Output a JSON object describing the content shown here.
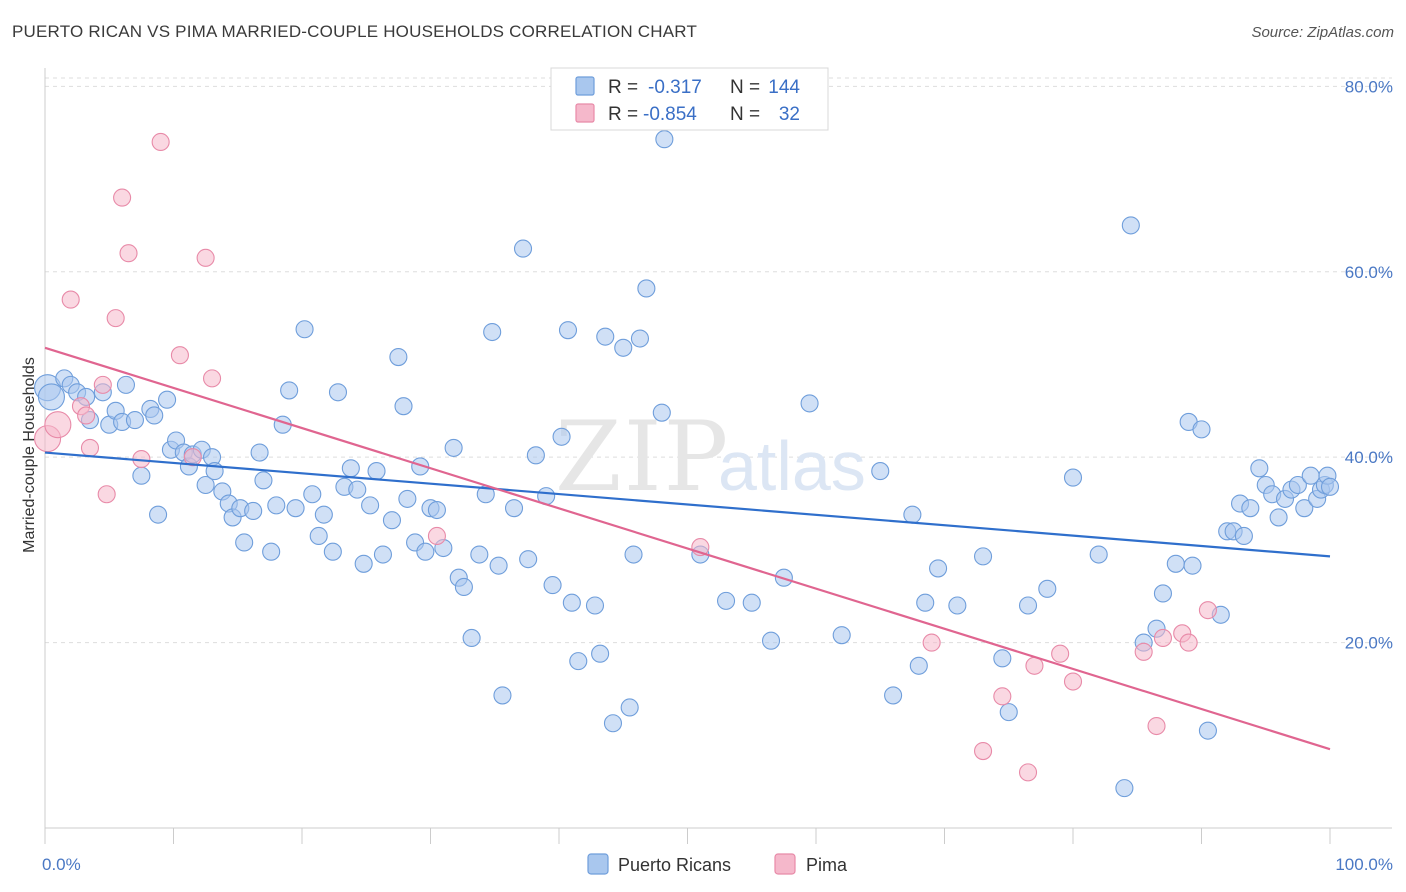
{
  "title": "PUERTO RICAN VS PIMA MARRIED-COUPLE HOUSEHOLDS CORRELATION CHART",
  "source": "Source: ZipAtlas.com",
  "watermark": {
    "zip": "ZIP",
    "atlas": "atlas"
  },
  "colors": {
    "blue_fill": "#a9c7ee",
    "blue_stroke": "#6f9edb",
    "blue_line": "#2f6fcc",
    "pink_fill": "#f5b8cb",
    "pink_stroke": "#e88aa8",
    "pink_line": "#e06590",
    "tick_text": "#4a78c4",
    "grid": "#dddddd"
  },
  "legend": {
    "rows": [
      {
        "r_label": "R =",
        "r_value": "-0.317",
        "n_label": "N =",
        "n_value": "144"
      },
      {
        "r_label": "R =",
        "r_value": "-0.854",
        "n_label": "N =",
        "n_value": "32"
      }
    ]
  },
  "chart_data": {
    "type": "scatter",
    "title": "PUERTO RICAN VS PIMA MARRIED-COUPLE HOUSEHOLDS CORRELATION CHART",
    "xlabel": "",
    "ylabel": "Married-couple Households",
    "xlim": [
      0,
      100
    ],
    "ylim": [
      0,
      85
    ],
    "x_tick_labels": [
      "0.0%",
      "100.0%"
    ],
    "y_ticks": [
      20,
      40,
      60,
      80
    ],
    "y_tick_labels": [
      "20.0%",
      "40.0%",
      "60.0%",
      "80.0%"
    ],
    "grid": true,
    "legend_position": "top-center",
    "series": [
      {
        "name": "Puerto Ricans",
        "trend": {
          "x": [
            0,
            100
          ],
          "y": [
            40.5,
            29.3
          ]
        },
        "points": [
          [
            0.2,
            47.5
          ],
          [
            0.5,
            46.5
          ],
          [
            1.5,
            48.5
          ],
          [
            2.0,
            47.8
          ],
          [
            2.5,
            47.0
          ],
          [
            3.2,
            46.5
          ],
          [
            3.5,
            44.0
          ],
          [
            4.5,
            47.0
          ],
          [
            5.0,
            43.5
          ],
          [
            5.5,
            45.0
          ],
          [
            6.0,
            43.8
          ],
          [
            6.3,
            47.8
          ],
          [
            7.0,
            44.0
          ],
          [
            7.5,
            38.0
          ],
          [
            8.2,
            45.2
          ],
          [
            8.5,
            44.5
          ],
          [
            8.8,
            33.8
          ],
          [
            9.5,
            46.2
          ],
          [
            9.8,
            40.8
          ],
          [
            10.2,
            41.8
          ],
          [
            10.8,
            40.5
          ],
          [
            11.2,
            39.0
          ],
          [
            11.5,
            40.3
          ],
          [
            12.2,
            40.8
          ],
          [
            12.5,
            37.0
          ],
          [
            13.0,
            40.0
          ],
          [
            13.2,
            38.5
          ],
          [
            13.8,
            36.3
          ],
          [
            14.3,
            35.0
          ],
          [
            14.6,
            33.5
          ],
          [
            15.2,
            34.5
          ],
          [
            15.5,
            30.8
          ],
          [
            16.2,
            34.2
          ],
          [
            16.7,
            40.5
          ],
          [
            17.0,
            37.5
          ],
          [
            17.6,
            29.8
          ],
          [
            18.0,
            34.8
          ],
          [
            18.5,
            43.5
          ],
          [
            19.0,
            47.2
          ],
          [
            19.5,
            34.5
          ],
          [
            20.2,
            53.8
          ],
          [
            20.8,
            36.0
          ],
          [
            21.3,
            31.5
          ],
          [
            21.7,
            33.8
          ],
          [
            22.4,
            29.8
          ],
          [
            22.8,
            47.0
          ],
          [
            23.3,
            36.8
          ],
          [
            23.8,
            38.8
          ],
          [
            24.3,
            36.5
          ],
          [
            24.8,
            28.5
          ],
          [
            25.3,
            34.8
          ],
          [
            25.8,
            38.5
          ],
          [
            26.3,
            29.5
          ],
          [
            27.0,
            33.2
          ],
          [
            27.5,
            50.8
          ],
          [
            27.9,
            45.5
          ],
          [
            28.2,
            35.5
          ],
          [
            28.8,
            30.8
          ],
          [
            29.2,
            39.0
          ],
          [
            29.6,
            29.8
          ],
          [
            30.0,
            34.5
          ],
          [
            30.5,
            34.3
          ],
          [
            31.0,
            30.2
          ],
          [
            31.8,
            41.0
          ],
          [
            32.2,
            27.0
          ],
          [
            32.6,
            26.0
          ],
          [
            33.2,
            20.5
          ],
          [
            33.8,
            29.5
          ],
          [
            34.3,
            36.0
          ],
          [
            34.8,
            53.5
          ],
          [
            35.3,
            28.3
          ],
          [
            35.6,
            14.3
          ],
          [
            36.5,
            34.5
          ],
          [
            37.2,
            62.5
          ],
          [
            37.6,
            29.0
          ],
          [
            38.2,
            40.2
          ],
          [
            39.0,
            35.8
          ],
          [
            39.5,
            26.2
          ],
          [
            40.2,
            42.2
          ],
          [
            40.7,
            53.7
          ],
          [
            41.0,
            24.3
          ],
          [
            41.5,
            18.0
          ],
          [
            42.8,
            24.0
          ],
          [
            43.2,
            18.8
          ],
          [
            43.6,
            53.0
          ],
          [
            44.2,
            11.3
          ],
          [
            45.0,
            51.8
          ],
          [
            45.5,
            13.0
          ],
          [
            45.8,
            29.5
          ],
          [
            46.3,
            52.8
          ],
          [
            46.8,
            58.2
          ],
          [
            48.0,
            44.8
          ],
          [
            48.2,
            74.3
          ],
          [
            51.0,
            29.5
          ],
          [
            53.0,
            24.5
          ],
          [
            55.0,
            24.3
          ],
          [
            56.5,
            20.2
          ],
          [
            57.5,
            27.0
          ],
          [
            59.5,
            45.8
          ],
          [
            62.0,
            20.8
          ],
          [
            65.0,
            38.5
          ],
          [
            66.0,
            14.3
          ],
          [
            67.5,
            33.8
          ],
          [
            68.0,
            17.5
          ],
          [
            68.5,
            24.3
          ],
          [
            69.5,
            28.0
          ],
          [
            71.0,
            24.0
          ],
          [
            73.0,
            29.3
          ],
          [
            74.5,
            18.3
          ],
          [
            75.0,
            12.5
          ],
          [
            76.5,
            24.0
          ],
          [
            78.0,
            25.8
          ],
          [
            80.0,
            37.8
          ],
          [
            82.0,
            29.5
          ],
          [
            84.0,
            4.3
          ],
          [
            84.5,
            65.0
          ],
          [
            85.5,
            20.0
          ],
          [
            86.5,
            21.5
          ],
          [
            87.0,
            25.3
          ],
          [
            88.0,
            28.5
          ],
          [
            89.0,
            43.8
          ],
          [
            89.3,
            28.3
          ],
          [
            90.0,
            43.0
          ],
          [
            90.5,
            10.5
          ],
          [
            91.5,
            23.0
          ],
          [
            92.0,
            32.0
          ],
          [
            92.5,
            32.0
          ],
          [
            93.0,
            35.0
          ],
          [
            93.3,
            31.5
          ],
          [
            93.8,
            34.5
          ],
          [
            94.5,
            38.8
          ],
          [
            95.0,
            37.0
          ],
          [
            95.5,
            36.0
          ],
          [
            96.0,
            33.5
          ],
          [
            96.5,
            35.5
          ],
          [
            97.0,
            36.5
          ],
          [
            97.5,
            37.0
          ],
          [
            98.0,
            34.5
          ],
          [
            98.5,
            38.0
          ],
          [
            99.0,
            35.5
          ],
          [
            99.3,
            36.5
          ],
          [
            99.6,
            37.0
          ],
          [
            99.8,
            38.0
          ],
          [
            100.0,
            36.8
          ]
        ]
      },
      {
        "name": "Pima",
        "trend": {
          "x": [
            0,
            100
          ],
          "y": [
            51.8,
            8.5
          ]
        },
        "points": [
          [
            0.2,
            42.0
          ],
          [
            1.0,
            43.5
          ],
          [
            2.0,
            57.0
          ],
          [
            2.8,
            45.5
          ],
          [
            3.2,
            44.5
          ],
          [
            3.5,
            41.0
          ],
          [
            4.5,
            47.8
          ],
          [
            4.8,
            36.0
          ],
          [
            5.5,
            55.0
          ],
          [
            6.0,
            68.0
          ],
          [
            6.5,
            62.0
          ],
          [
            7.5,
            39.8
          ],
          [
            9.0,
            74.0
          ],
          [
            10.5,
            51.0
          ],
          [
            11.5,
            40.0
          ],
          [
            12.5,
            61.5
          ],
          [
            13.0,
            48.5
          ],
          [
            30.5,
            31.5
          ],
          [
            51.0,
            30.3
          ],
          [
            69.0,
            20.0
          ],
          [
            73.0,
            8.3
          ],
          [
            74.5,
            14.2
          ],
          [
            76.5,
            6.0
          ],
          [
            77.0,
            17.5
          ],
          [
            79.0,
            18.8
          ],
          [
            80.0,
            15.8
          ],
          [
            85.5,
            19.0
          ],
          [
            86.5,
            11.0
          ],
          [
            87.0,
            20.5
          ],
          [
            88.5,
            21.0
          ],
          [
            89.0,
            20.0
          ],
          [
            90.5,
            23.5
          ]
        ]
      }
    ]
  }
}
